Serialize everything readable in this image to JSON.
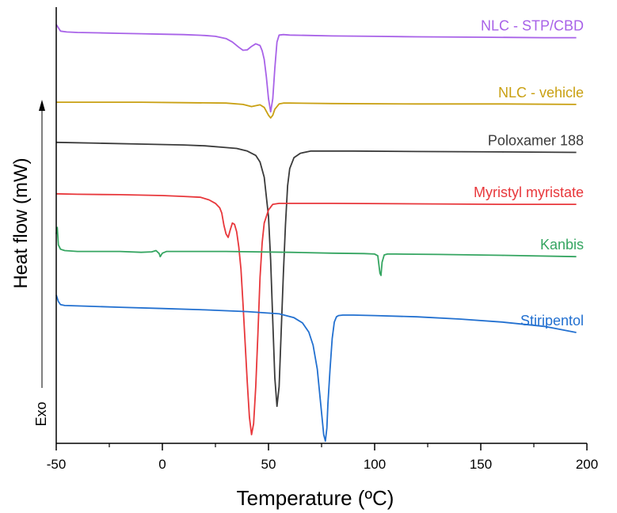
{
  "chart_data": {
    "type": "line",
    "xlabel": "Temperature (ºC)",
    "ylabel": "Heat flow (mW)",
    "exo_label": "Exo",
    "xlim": [
      -50,
      200
    ],
    "xticks": [
      -50,
      0,
      50,
      100,
      150,
      200
    ],
    "xtick_labels": [
      "-50",
      "0",
      "50",
      "100",
      "150",
      "200"
    ],
    "ylim": [
      0,
      10
    ],
    "grid": false,
    "legend": "none",
    "series": [
      {
        "name": "NLC - STP/CBD",
        "color": "#a862e8",
        "x": [
          -50,
          -48,
          -45,
          -40,
          -30,
          -20,
          -10,
          0,
          10,
          20,
          25,
          30,
          33,
          36,
          38,
          40,
          42,
          44,
          46,
          47,
          48,
          49,
          50,
          51,
          52,
          53,
          54,
          55,
          57,
          60,
          70,
          80,
          100,
          120,
          150,
          180,
          195
        ],
        "y": [
          9.6,
          9.45,
          9.43,
          9.42,
          9.41,
          9.4,
          9.39,
          9.38,
          9.37,
          9.35,
          9.33,
          9.28,
          9.2,
          9.08,
          9.01,
          9.02,
          9.1,
          9.16,
          9.12,
          9.0,
          8.8,
          8.4,
          7.9,
          7.6,
          7.9,
          8.6,
          9.2,
          9.36,
          9.37,
          9.36,
          9.35,
          9.34,
          9.33,
          9.32,
          9.31,
          9.3,
          9.3
        ]
      },
      {
        "name": "NLC - vehicle",
        "color": "#c9a012",
        "x": [
          -50,
          -30,
          -10,
          10,
          30,
          38,
          42,
          44,
          46,
          48,
          50,
          51,
          52,
          53,
          55,
          57,
          60,
          80,
          120,
          160,
          195
        ],
        "y": [
          7.82,
          7.82,
          7.82,
          7.81,
          7.8,
          7.77,
          7.72,
          7.74,
          7.76,
          7.7,
          7.52,
          7.46,
          7.52,
          7.66,
          7.78,
          7.8,
          7.8,
          7.79,
          7.78,
          7.78,
          7.77
        ]
      },
      {
        "name": "Poloxamer 188",
        "color": "#3a3a3a",
        "x": [
          -50,
          -30,
          -10,
          10,
          20,
          30,
          35,
          40,
          44,
          46,
          48,
          50,
          51,
          52,
          53,
          54,
          55,
          56,
          57,
          58,
          59,
          60,
          62,
          65,
          70,
          90,
          120,
          160,
          195
        ],
        "y": [
          6.9,
          6.88,
          6.86,
          6.84,
          6.82,
          6.78,
          6.76,
          6.7,
          6.6,
          6.45,
          6.1,
          5.2,
          4.2,
          2.8,
          1.5,
          0.85,
          1.3,
          2.6,
          3.9,
          5.0,
          5.9,
          6.3,
          6.55,
          6.65,
          6.7,
          6.7,
          6.69,
          6.68,
          6.67
        ]
      },
      {
        "name": "Myristyl myristate",
        "color": "#e8373b",
        "x": [
          -50,
          -40,
          -20,
          0,
          10,
          18,
          22,
          25,
          27,
          28,
          29,
          30,
          31,
          32,
          33,
          34,
          35,
          36,
          37,
          38,
          39,
          40,
          41,
          42,
          43,
          44,
          45,
          46,
          47,
          48,
          50,
          52,
          55,
          60,
          80,
          120,
          160,
          195
        ],
        "y": [
          5.72,
          5.71,
          5.7,
          5.68,
          5.66,
          5.64,
          5.58,
          5.5,
          5.4,
          5.28,
          5.0,
          4.8,
          4.72,
          4.9,
          5.05,
          5.02,
          4.85,
          4.5,
          4.0,
          3.2,
          2.3,
          1.4,
          0.6,
          0.2,
          0.45,
          1.3,
          2.5,
          3.8,
          4.6,
          5.05,
          5.35,
          5.48,
          5.5,
          5.5,
          5.5,
          5.49,
          5.48,
          5.48
        ]
      },
      {
        "name": "Kanbis",
        "color": "#35a561",
        "x": [
          -50,
          -49.5,
          -49,
          -48,
          -46,
          -40,
          -20,
          -10,
          -5,
          -3,
          -1.5,
          -1,
          0,
          2,
          10,
          30,
          60,
          80,
          95,
          100,
          101.5,
          102.5,
          103,
          103.5,
          104.5,
          106,
          110,
          130,
          160,
          195
        ],
        "y": [
          4.8,
          4.95,
          4.55,
          4.45,
          4.42,
          4.4,
          4.4,
          4.38,
          4.39,
          4.42,
          4.35,
          4.28,
          4.36,
          4.4,
          4.4,
          4.4,
          4.38,
          4.36,
          4.35,
          4.34,
          4.3,
          3.9,
          3.85,
          4.15,
          4.32,
          4.34,
          4.34,
          4.33,
          4.31,
          4.28
        ]
      },
      {
        "name": "Stiripentol",
        "color": "#2270d0",
        "x": [
          -50,
          -49,
          -48,
          -46,
          -40,
          -20,
          0,
          20,
          40,
          55,
          62,
          66,
          69,
          71,
          73,
          74,
          75,
          76,
          76.8,
          77.5,
          78,
          79,
          80,
          81,
          82,
          83,
          85,
          90,
          100,
          120,
          140,
          160,
          180,
          195
        ],
        "y": [
          3.4,
          3.25,
          3.18,
          3.16,
          3.15,
          3.12,
          3.09,
          3.06,
          3.02,
          2.97,
          2.88,
          2.76,
          2.55,
          2.25,
          1.7,
          1.2,
          0.7,
          0.2,
          0.05,
          0.35,
          0.9,
          1.7,
          2.4,
          2.78,
          2.9,
          2.93,
          2.94,
          2.94,
          2.93,
          2.9,
          2.85,
          2.78,
          2.68,
          2.54
        ]
      }
    ]
  }
}
